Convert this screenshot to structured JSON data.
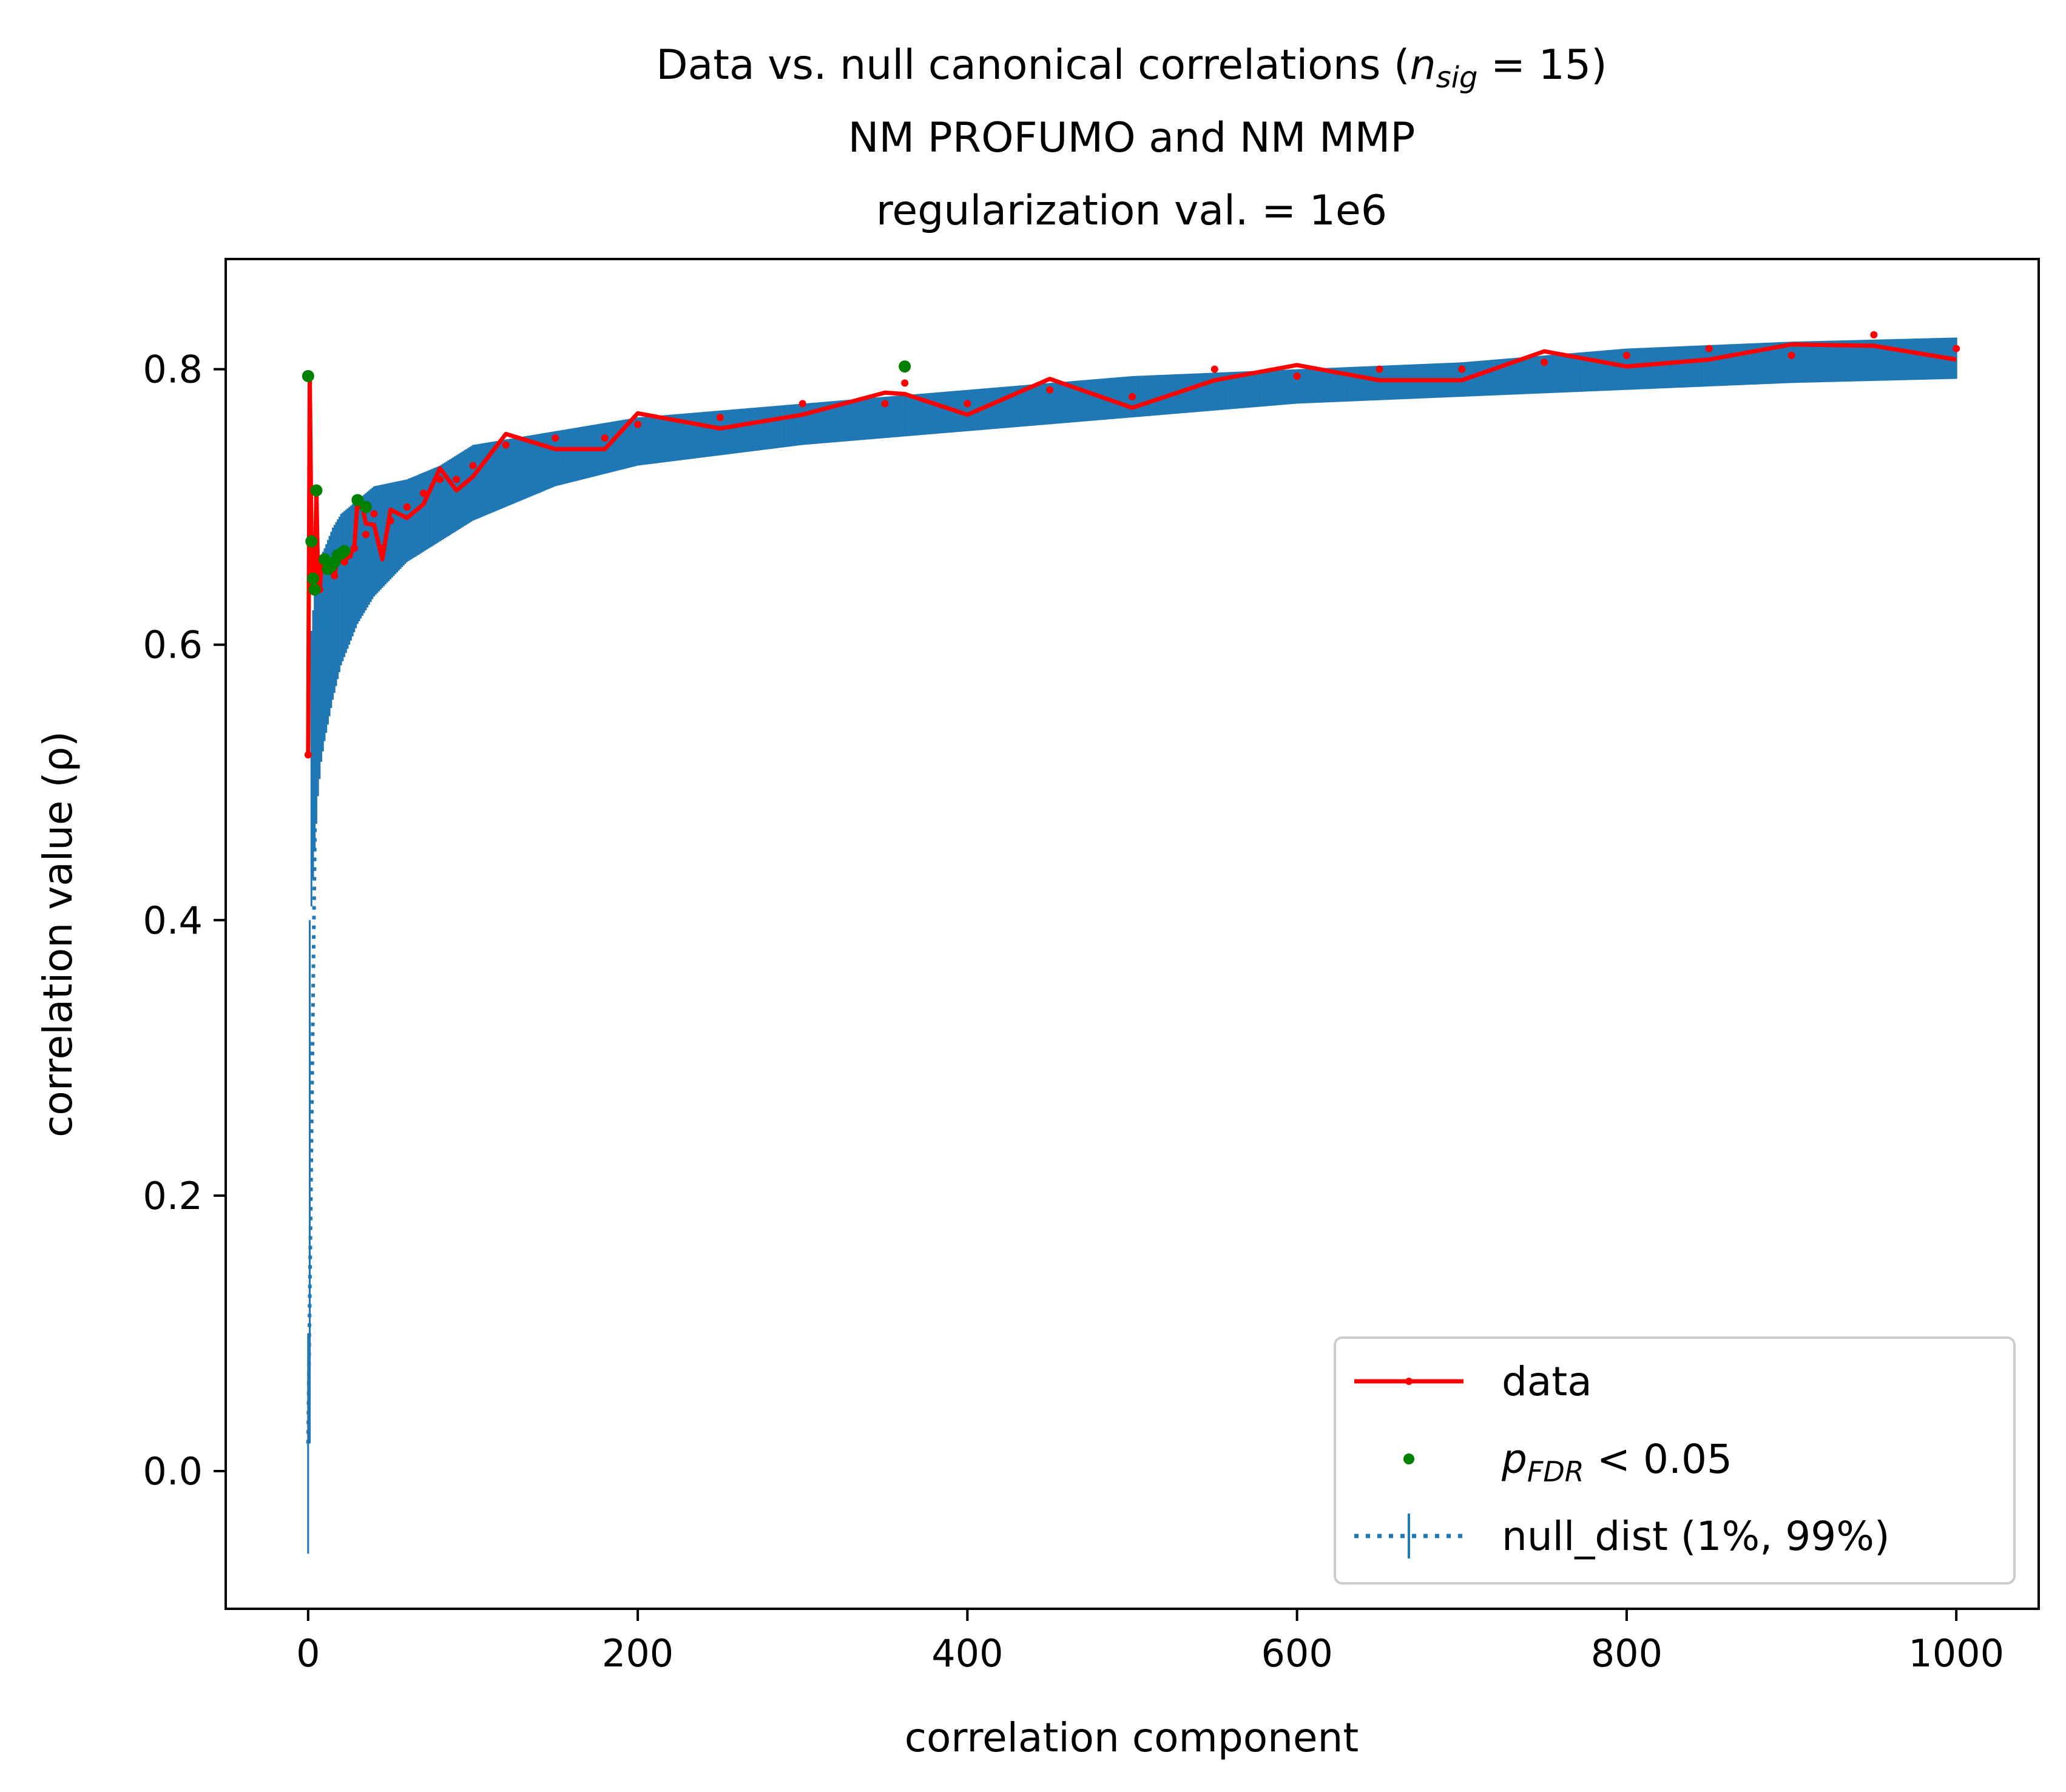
{
  "chart_data": {
    "type": "line",
    "title_lines": [
      "Data vs. null canonical correlations (",
      "NM PROFUMO and NM MMP",
      "regularization val. = 1e6"
    ],
    "title_math": {
      "n": "n",
      "sub": "sig",
      "rest": " = 15)"
    },
    "xlabel": "correlation component",
    "ylabel": "correlation value (ρ)",
    "xlim": [
      -50,
      1050
    ],
    "ylim": [
      -0.1,
      0.88
    ],
    "xticks": [
      0,
      200,
      400,
      600,
      800,
      1000
    ],
    "xtick_labels": [
      "0",
      "200",
      "400",
      "600",
      "800",
      "1000"
    ],
    "yticks": [
      0.0,
      0.2,
      0.4,
      0.6,
      0.8
    ],
    "ytick_labels": [
      "0.0",
      "0.2",
      "0.4",
      "0.6",
      "0.8"
    ],
    "grid": false,
    "legend_position": "lower-right",
    "legend": {
      "data": "data",
      "sig_p": "p",
      "sig_sub": "FDR",
      "sig_rest": " < 0.05",
      "null": "null_dist (1%, 99%)"
    },
    "colors": {
      "data": "#ff0000",
      "significant": "#008000",
      "null": "#1f77b4"
    },
    "data_series": {
      "name": "data",
      "x": [
        0,
        1,
        2,
        3,
        4,
        5,
        6,
        7,
        8,
        9,
        10,
        12,
        14,
        16,
        18,
        20,
        22,
        25,
        28,
        30,
        33,
        35,
        40,
        45,
        50,
        60,
        70,
        80,
        90,
        100,
        120,
        150,
        180,
        200,
        250,
        300,
        350,
        362,
        400,
        450,
        500,
        550,
        600,
        650,
        700,
        750,
        800,
        850,
        900,
        950,
        1000
      ],
      "y": [
        0.52,
        0.795,
        0.675,
        0.645,
        0.64,
        0.712,
        0.65,
        0.64,
        0.655,
        0.66,
        0.662,
        0.655,
        0.66,
        0.65,
        0.665,
        0.665,
        0.66,
        0.665,
        0.67,
        0.705,
        0.7,
        0.68,
        0.695,
        0.67,
        0.69,
        0.7,
        0.71,
        0.72,
        0.72,
        0.73,
        0.745,
        0.75,
        0.75,
        0.76,
        0.765,
        0.775,
        0.775,
        0.79,
        0.775,
        0.785,
        0.78,
        0.8,
        0.795,
        0.8,
        0.8,
        0.805,
        0.81,
        0.815,
        0.81,
        0.825,
        0.815
      ]
    },
    "significant_points": {
      "name": "p_FDR < 0.05",
      "x": [
        0,
        2,
        3,
        4,
        5,
        10,
        12,
        14,
        16,
        18,
        20,
        22,
        30,
        35,
        362
      ],
      "y": [
        0.795,
        0.675,
        0.648,
        0.64,
        0.712,
        0.662,
        0.655,
        0.657,
        0.66,
        0.665,
        0.666,
        0.668,
        0.705,
        0.7,
        0.802
      ]
    },
    "null_band": {
      "name": "null_dist (1%, 99%)",
      "x": [
        0,
        1,
        2,
        4,
        6,
        8,
        10,
        15,
        20,
        30,
        40,
        60,
        80,
        100,
        150,
        200,
        300,
        400,
        500,
        600,
        700,
        800,
        900,
        1000
      ],
      "lower": [
        -0.06,
        0.02,
        0.41,
        0.45,
        0.49,
        0.515,
        0.53,
        0.56,
        0.585,
        0.615,
        0.635,
        0.66,
        0.675,
        0.69,
        0.715,
        0.73,
        0.745,
        0.755,
        0.765,
        0.775,
        0.78,
        0.785,
        0.79,
        0.793
      ],
      "upper": [
        0.1,
        0.4,
        0.61,
        0.64,
        0.655,
        0.665,
        0.67,
        0.685,
        0.695,
        0.705,
        0.715,
        0.72,
        0.73,
        0.745,
        0.755,
        0.765,
        0.775,
        0.785,
        0.795,
        0.8,
        0.805,
        0.815,
        0.82,
        0.823
      ]
    }
  }
}
